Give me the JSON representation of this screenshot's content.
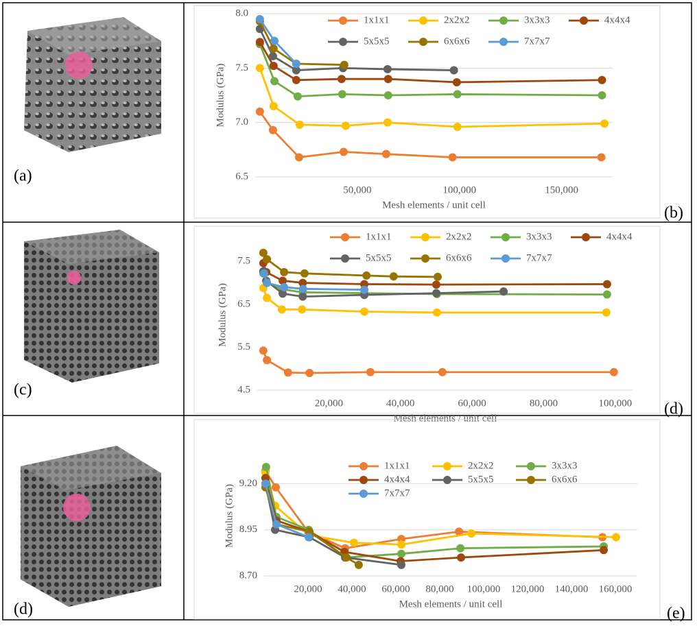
{
  "image_labels": [
    "(a)",
    "(c)",
    "(d)"
  ],
  "chart_labels": [
    "(b)",
    "(d)",
    "(e)"
  ],
  "chart_data": [
    {
      "type": "line",
      "y_label": "Modulus (GPa)",
      "x_label": "Mesh elements / unit cell",
      "grid": true,
      "xlim": [
        0,
        175000
      ],
      "xticks": [
        {
          "value": 50000,
          "label": "50,000"
        },
        {
          "value": 100000,
          "label": "100,000"
        },
        {
          "value": 150000,
          "label": "150,000"
        }
      ],
      "ylim": [
        6.5,
        8.0
      ],
      "yticks": [
        6.5,
        {
          "value": 7,
          "label": "7.0"
        },
        7.5,
        {
          "value": 8,
          "label": "8.0"
        }
      ],
      "series": [
        {
          "name": "1x1x1",
          "color": "#ED7D31",
          "x": [
            2300,
            8700,
            21500,
            43300,
            64100,
            96600,
            169500
          ],
          "values": [
            7.1,
            6.93,
            6.68,
            6.73,
            6.71,
            6.68,
            6.68
          ]
        },
        {
          "name": "2x2x2",
          "color": "#FFC000",
          "x": [
            2300,
            9000,
            21800,
            44300,
            64800,
            99000,
            171000
          ],
          "values": [
            7.5,
            7.15,
            6.98,
            6.97,
            7.0,
            6.96,
            6.99
          ]
        },
        {
          "name": "3x3x3",
          "color": "#70AD47",
          "x": [
            2300,
            9400,
            20800,
            42600,
            65100,
            99000,
            169800
          ],
          "values": [
            7.72,
            7.38,
            7.24,
            7.26,
            7.25,
            7.26,
            7.25
          ]
        },
        {
          "name": "4x4x4",
          "color": "#9E480E",
          "x": [
            2300,
            9000,
            20100,
            42300,
            65100,
            98700,
            169800
          ],
          "values": [
            7.74,
            7.52,
            7.39,
            7.4,
            7.4,
            7.37,
            7.39
          ]
        },
        {
          "name": "5x5x5",
          "color": "#636363",
          "x": [
            2300,
            8700,
            20100,
            43000,
            64800,
            97300
          ],
          "values": [
            7.86,
            7.61,
            7.48,
            7.5,
            7.49,
            7.48
          ]
        },
        {
          "name": "6x6x6",
          "color": "#997300",
          "x": [
            2300,
            9000,
            20100,
            43600
          ],
          "values": [
            7.93,
            7.68,
            7.54,
            7.53
          ]
        },
        {
          "name": "7x7x7",
          "color": "#5B9BD5",
          "x": [
            2300,
            9400,
            20100
          ],
          "values": [
            7.95,
            7.75,
            7.54
          ]
        }
      ]
    },
    {
      "type": "line",
      "y_label": "Modulus (GPa)",
      "x_label": "Mesh elements / unit cell",
      "grid": false,
      "xlim": [
        0,
        105000
      ],
      "xticks": [
        {
          "value": 20000,
          "label": "20,000"
        },
        {
          "value": 40000,
          "label": "40,000"
        },
        {
          "value": 60000,
          "label": "60,000"
        },
        {
          "value": 80000,
          "label": "80,000"
        },
        {
          "value": 100000,
          "label": "100,000"
        }
      ],
      "ylim": [
        4.5,
        8.0
      ],
      "yticks": [
        4.5,
        5.5,
        6.5,
        7.5
      ],
      "series": [
        {
          "name": "1x1x1",
          "color": "#ED7D31",
          "x": [
            1700,
            2700,
            8600,
            14600,
            31600,
            51700,
            99600
          ],
          "values": [
            5.42,
            5.2,
            4.91,
            4.9,
            4.92,
            4.92,
            4.92
          ]
        },
        {
          "name": "2x2x2",
          "color": "#FFC000",
          "x": [
            1700,
            2700,
            6900,
            12500,
            29900,
            50200,
            97500
          ],
          "values": [
            6.88,
            6.65,
            6.38,
            6.38,
            6.33,
            6.31,
            6.31
          ]
        },
        {
          "name": "3x3x3",
          "color": "#70AD47",
          "x": [
            1700,
            2700,
            7100,
            12700,
            29900,
            50200,
            97700
          ],
          "values": [
            7.22,
            7.0,
            6.85,
            6.78,
            6.76,
            6.74,
            6.73
          ]
        },
        {
          "name": "4x4x4",
          "color": "#9E480E",
          "x": [
            1700,
            2500,
            7100,
            12700,
            29900,
            50000,
            97700
          ],
          "values": [
            7.46,
            7.25,
            7.05,
            7.0,
            6.97,
            6.96,
            6.97
          ]
        },
        {
          "name": "5x5x5",
          "color": "#636363",
          "x": [
            1700,
            2500,
            7100,
            12700,
            29900,
            50000,
            68800
          ],
          "values": [
            7.27,
            7.05,
            6.75,
            6.68,
            6.72,
            6.76,
            6.8
          ]
        },
        {
          "name": "6x6x6",
          "color": "#997300",
          "x": [
            1700,
            2700,
            7500,
            13200,
            30500,
            38100,
            50400
          ],
          "values": [
            7.7,
            7.55,
            7.25,
            7.22,
            7.17,
            7.15,
            7.14
          ]
        },
        {
          "name": "7x7x7",
          "color": "#5B9BD5",
          "x": [
            1900,
            2700,
            7500,
            12800,
            29900
          ],
          "values": [
            7.22,
            7.0,
            6.9,
            6.86,
            6.84
          ]
        }
      ]
    },
    {
      "type": "line",
      "y_label": "Modulus (GPa)",
      "x_label": "Mesh elements / unit cell",
      "grid": true,
      "xlim": [
        0,
        170000
      ],
      "xticks": [
        {
          "value": 20000,
          "label": "20,000"
        },
        {
          "value": 40000,
          "label": "40,000"
        },
        {
          "value": 60000,
          "label": "60,000"
        },
        {
          "value": 80000,
          "label": "80,000"
        },
        {
          "value": 100000,
          "label": "100,000"
        },
        {
          "value": 120000,
          "label": "120,000"
        },
        {
          "value": 140000,
          "label": "140,000"
        },
        {
          "value": 160000,
          "label": "160,000"
        }
      ],
      "ylim": [
        8.7,
        9.35
      ],
      "yticks": [
        {
          "value": 8.7,
          "label": "8.70"
        },
        {
          "value": 8.95,
          "label": "8.95"
        },
        {
          "value": 9.2,
          "label": "9.20"
        }
      ],
      "series": [
        {
          "name": "1x1x1",
          "color": "#ED7D31",
          "x": [
            600,
            5300,
            20000,
            36900,
            62500,
            88800,
            154100
          ],
          "values": [
            9.27,
            9.18,
            8.94,
            8.85,
            8.9,
            8.94,
            8.91
          ]
        },
        {
          "name": "2x2x2",
          "color": "#FFC000",
          "x": [
            600,
            5000,
            20600,
            40900,
            62500,
            94400,
            160300
          ],
          "values": [
            9.26,
            9.08,
            8.92,
            8.88,
            8.87,
            8.93,
            8.91
          ]
        },
        {
          "name": "3x3x3",
          "color": "#70AD47",
          "x": [
            900,
            5600,
            20300,
            37200,
            62500,
            89400,
            154700
          ],
          "values": [
            9.29,
            9.02,
            8.95,
            8.8,
            8.82,
            8.85,
            8.86
          ]
        },
        {
          "name": "4x4x4",
          "color": "#9E480E",
          "x": [
            600,
            5600,
            20600,
            36600,
            62200,
            89700,
            154700
          ],
          "values": [
            9.23,
            9.0,
            8.94,
            8.83,
            8.78,
            8.8,
            8.84
          ]
        },
        {
          "name": "5x5x5",
          "color": "#636363",
          "x": [
            600,
            5000,
            20600,
            36900,
            62500
          ],
          "values": [
            9.2,
            8.95,
            8.91,
            8.8,
            8.76
          ]
        },
        {
          "name": "6x6x6",
          "color": "#997300",
          "x": [
            600,
            5600,
            20600,
            37500,
            43100
          ],
          "values": [
            9.18,
            8.98,
            8.94,
            8.8,
            8.76
          ]
        },
        {
          "name": "7x7x7",
          "color": "#5B9BD5",
          "x": [
            600,
            5600,
            20300
          ],
          "values": [
            9.2,
            8.98,
            8.91
          ]
        }
      ]
    }
  ]
}
